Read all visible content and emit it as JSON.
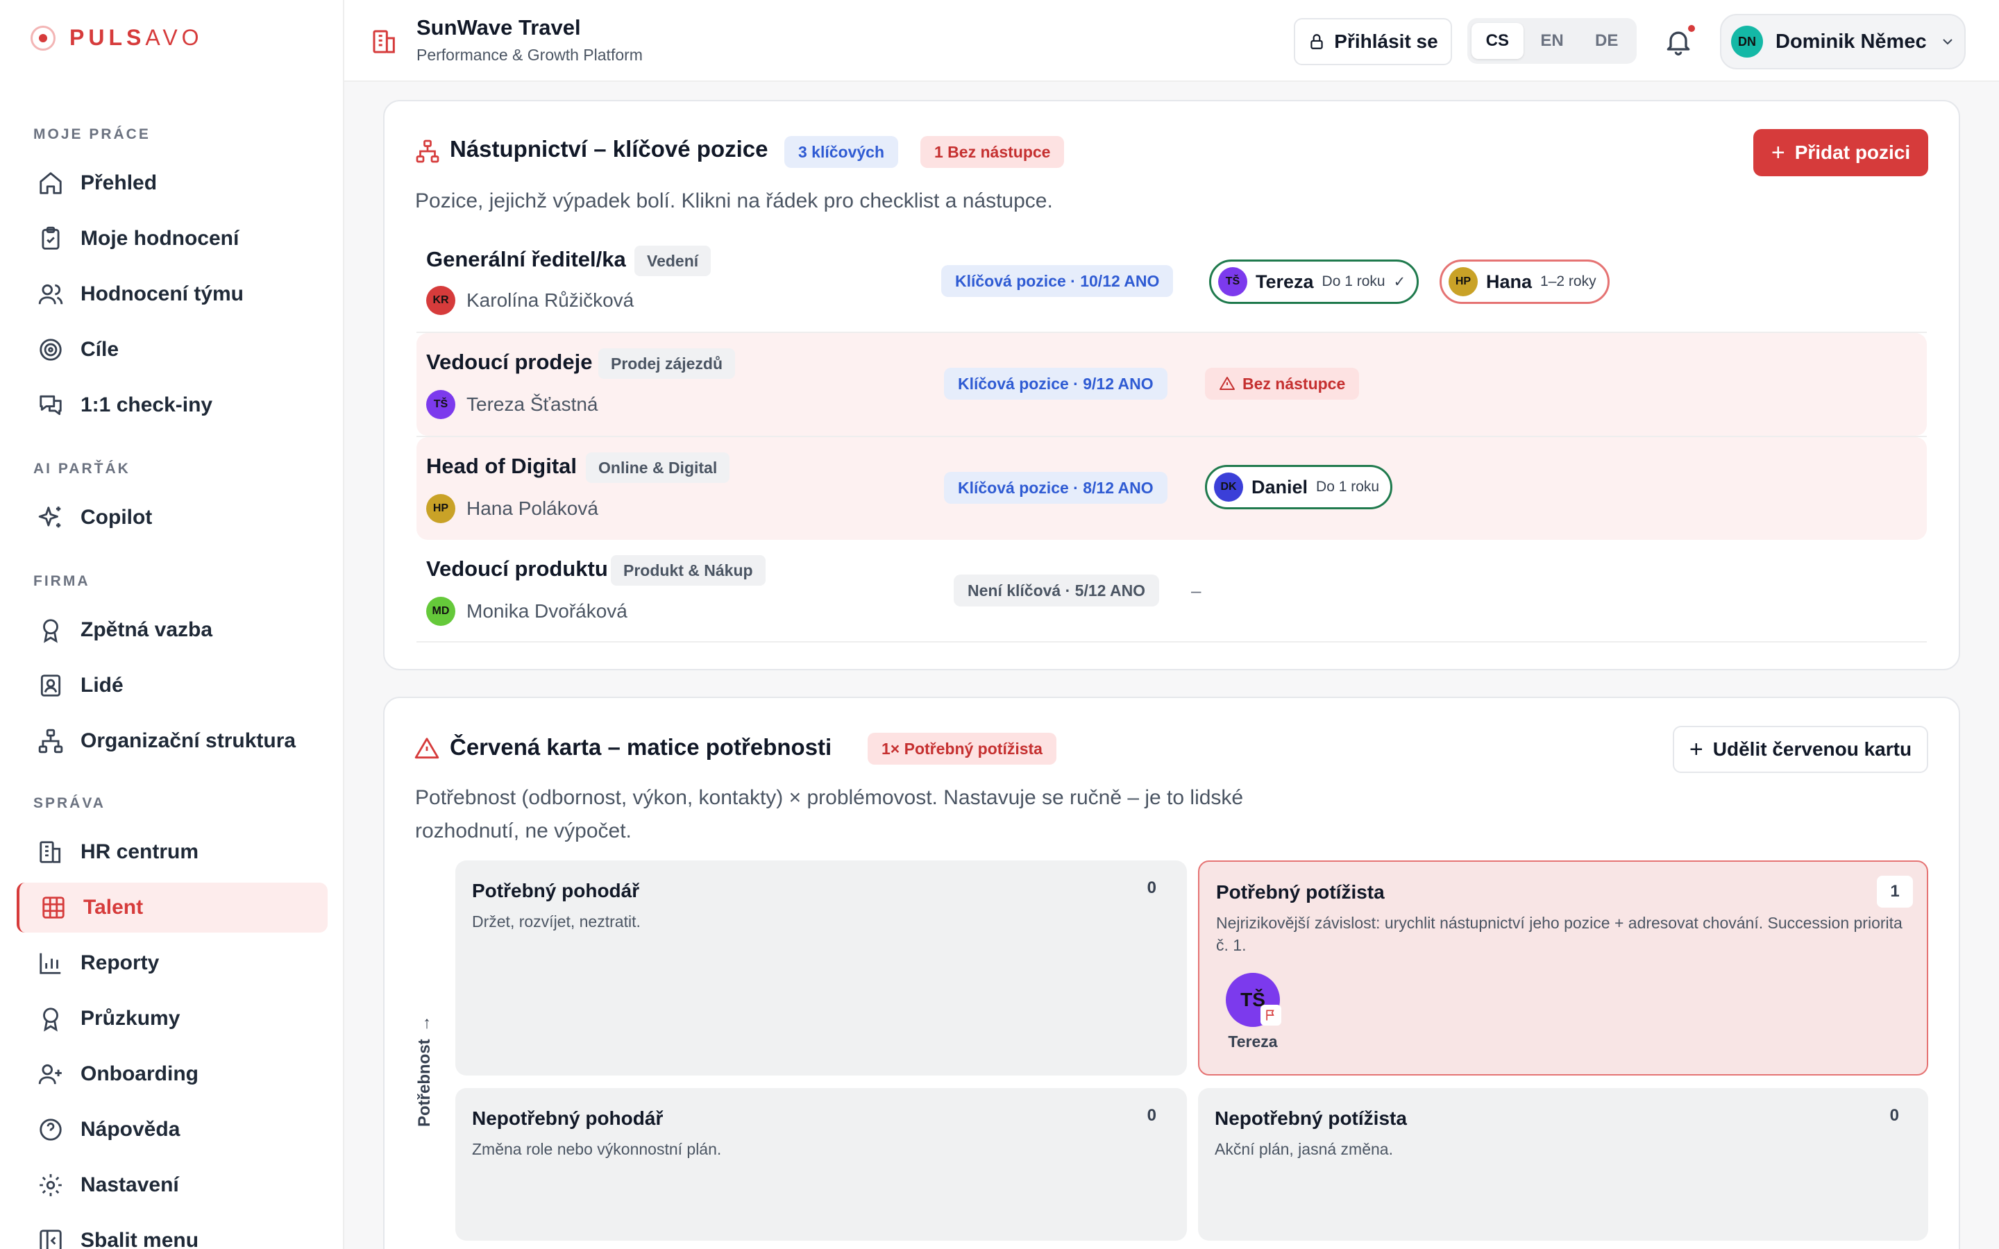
{
  "brand": {
    "bold": "PULS",
    "light": "AVO"
  },
  "sidebar": {
    "sections": [
      {
        "label": "MOJE PRÁCE"
      },
      {
        "label": "AI PARŤÁK"
      },
      {
        "label": "FIRMA"
      },
      {
        "label": "SPRÁVA"
      }
    ],
    "items": [
      {
        "label": "Přehled",
        "icon": "home-icon"
      },
      {
        "label": "Moje hodnocení",
        "icon": "clipboard-icon"
      },
      {
        "label": "Hodnocení týmu",
        "icon": "users-icon"
      },
      {
        "label": "Cíle",
        "icon": "target-icon"
      },
      {
        "label": "1:1 check-iny",
        "icon": "chat-icon"
      },
      {
        "label": "Copilot",
        "icon": "sparkles-icon"
      },
      {
        "label": "Zpětná vazba",
        "icon": "award-icon"
      },
      {
        "label": "Lidé",
        "icon": "id-card-icon"
      },
      {
        "label": "Organizační struktura",
        "icon": "org-chart-icon"
      },
      {
        "label": "HR centrum",
        "icon": "building-icon"
      },
      {
        "label": "Talent",
        "icon": "grid-icon"
      },
      {
        "label": "Reporty",
        "icon": "bar-chart-icon"
      },
      {
        "label": "Průzkumy",
        "icon": "award-icon"
      },
      {
        "label": "Onboarding",
        "icon": "user-plus-icon"
      },
      {
        "label": "Nápověda",
        "icon": "help-icon"
      },
      {
        "label": "Nastavení",
        "icon": "gear-icon"
      },
      {
        "label": "Sbalit menu",
        "icon": "collapse-icon"
      }
    ],
    "active_index": 10
  },
  "header": {
    "org_name": "SunWave Travel",
    "org_subtitle": "Performance & Growth Platform",
    "login_label": "Přihlásit se",
    "languages": [
      "CS",
      "EN",
      "DE"
    ],
    "active_language": "CS",
    "user": {
      "initials": "DN",
      "name": "Dominik Němec"
    }
  },
  "succession": {
    "title": "Nástupnictví – klíčové pozice",
    "badge_key": "3 klíčových",
    "badge_none": "1 Bez nástupce",
    "add_label": "Přidat pozici",
    "description": "Pozice, jejichž výpadek bolí. Klikni na řádek pro checklist a nástupce.",
    "rows": [
      {
        "title": "Generální ředitel/ka",
        "dept": "Vedení",
        "holder": {
          "initials": "KR",
          "name": "Karolína Růžičková",
          "color": "#d63b3b"
        },
        "status": "Klíčová pozice · 10/12 ANO",
        "status_type": "key",
        "successors": [
          {
            "initials": "TŠ",
            "name": "Tereza",
            "time": "Do 1 roku",
            "check": "✓",
            "border": "green",
            "color": "#7c3aed"
          },
          {
            "initials": "HP",
            "name": "Hana",
            "time": "1–2 roky",
            "check": "",
            "border": "pink",
            "color": "#c9a227"
          }
        ]
      },
      {
        "title": "Vedoucí prodeje",
        "dept": "Prodej zájezdů",
        "holder": {
          "initials": "TŠ",
          "name": "Tereza Šťastná",
          "color": "#7c3aed"
        },
        "status": "Klíčová pozice · 9/12 ANO",
        "status_type": "key",
        "no_successor": "Bez nástupce",
        "successors": []
      },
      {
        "title": "Head of Digital",
        "dept": "Online & Digital",
        "holder": {
          "initials": "HP",
          "name": "Hana Poláková",
          "color": "#c9a227"
        },
        "status": "Klíčová pozice · 8/12 ANO",
        "status_type": "key",
        "successors": [
          {
            "initials": "DK",
            "name": "Daniel",
            "time": "Do 1 roku",
            "check": "",
            "border": "green",
            "color": "#3b3fd8"
          }
        ]
      },
      {
        "title": "Vedoucí produktu",
        "dept": "Produkt & Nákup",
        "holder": {
          "initials": "MD",
          "name": "Monika Dvořáková",
          "color": "#65c93a"
        },
        "status": "Není klíčová · 5/12 ANO",
        "status_type": "none",
        "dash": "–",
        "successors": []
      }
    ]
  },
  "red_card": {
    "title": "Červená karta – matice potřebnosti",
    "badge": "1× Potřebný potížista",
    "action_label": "Udělit červenou kartu",
    "description_line1": "Potřebnost (odbornost, výkon, kontakty) × problémovost. Nastavuje se ručně – je to lidské",
    "description_line2": "rozhodnutí, ne výpočet.",
    "axis_label": "Potřebnost",
    "cells": [
      {
        "title": "Potřebný pohodář",
        "desc": "Držet, rozvíjet, neztratit.",
        "count": "0"
      },
      {
        "title": "Potřebný potížista",
        "desc": "Nejrizikovější závislost: urychlit nástupnictví jeho pozice + adresovat chování. Succession priorita č. 1.",
        "count": "1",
        "person": {
          "initials": "TŠ",
          "name": "Tereza"
        }
      },
      {
        "title": "Nepotřebný pohodář",
        "desc": "Změna role nebo výkonnostní plán.",
        "count": "0"
      },
      {
        "title": "Nepotřebný potížista",
        "desc": "Akční plán, jasná změna.",
        "count": "0"
      }
    ]
  },
  "colors": {
    "accent": "#d63b3b",
    "key_blue": "#2f5bd3",
    "success_green": "#1f7a4d"
  }
}
